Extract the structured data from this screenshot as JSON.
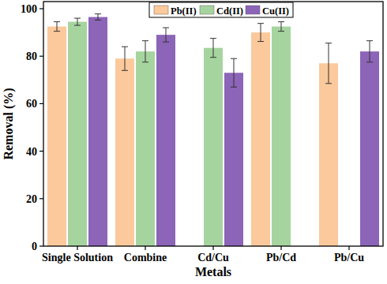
{
  "chart_data": {
    "type": "bar",
    "x_label": "Metals",
    "y_label": "Removal (%)",
    "categories": [
      "Single Solution",
      "Combine",
      "Cd/Cu",
      "Pb/Cd",
      "Pb/Cu"
    ],
    "series": [
      {
        "name": "Pb(II)",
        "color": "#fbc99b",
        "values": [
          92.5,
          79,
          null,
          90,
          77
        ],
        "errors": [
          2,
          5,
          null,
          3.8,
          8.5
        ]
      },
      {
        "name": "Cd(II)",
        "color": "#a6d49f",
        "values": [
          94.5,
          82,
          83.5,
          92.5,
          null
        ],
        "errors": [
          1.5,
          4.5,
          4,
          2,
          null
        ]
      },
      {
        "name": "Cu(II)",
        "color": "#8c64b8",
        "values": [
          96.5,
          89,
          73,
          null,
          82
        ],
        "errors": [
          1.3,
          3,
          6,
          null,
          4.5
        ]
      }
    ],
    "ylim": [
      0,
      103
    ],
    "yticks": [
      0,
      20,
      40,
      60,
      80,
      100
    ],
    "grid": false,
    "legend": "top"
  }
}
